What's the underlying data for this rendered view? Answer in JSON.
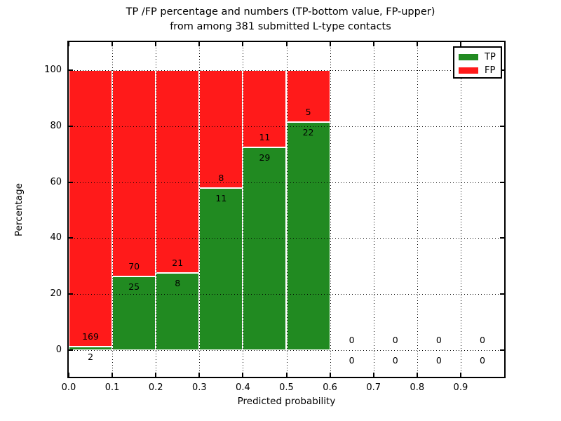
{
  "chart_data": {
    "type": "bar",
    "stacked": true,
    "title_line1": "TP /FP percentage and numbers (TP-bottom value, FP-upper)",
    "title_line2": "from among 381 submitted L-type contacts",
    "xlabel": "Predicted probability",
    "ylabel": "Percentage",
    "xlim": [
      0.0,
      1.0
    ],
    "ylim": [
      -9.5,
      110
    ],
    "bin_width": 0.1,
    "x_ticks": [
      "0.0",
      "0.1",
      "0.2",
      "0.3",
      "0.4",
      "0.5",
      "0.6",
      "0.7",
      "0.8",
      "0.9"
    ],
    "y_ticks": [
      0,
      20,
      40,
      60,
      80,
      100
    ],
    "grid_style": "dotted",
    "bins": [
      {
        "x0": 0.0,
        "tp": 2,
        "fp": 169
      },
      {
        "x0": 0.1,
        "tp": 25,
        "fp": 70
      },
      {
        "x0": 0.2,
        "tp": 8,
        "fp": 21
      },
      {
        "x0": 0.3,
        "tp": 11,
        "fp": 8
      },
      {
        "x0": 0.4,
        "tp": 29,
        "fp": 11
      },
      {
        "x0": 0.5,
        "tp": 22,
        "fp": 5
      },
      {
        "x0": 0.6,
        "tp": 0,
        "fp": 0
      },
      {
        "x0": 0.7,
        "tp": 0,
        "fp": 0
      },
      {
        "x0": 0.8,
        "tp": 0,
        "fp": 0
      },
      {
        "x0": 0.9,
        "tp": 0,
        "fp": 0
      }
    ],
    "colors": {
      "tp": "#218A21",
      "fp": "#FF1A1A",
      "bar_edge": "#FFFFFF",
      "axis": "#000000"
    },
    "legend": [
      {
        "label": "TP",
        "key": "tp"
      },
      {
        "label": "FP",
        "key": "fp"
      }
    ],
    "legend_position": "upper right"
  }
}
